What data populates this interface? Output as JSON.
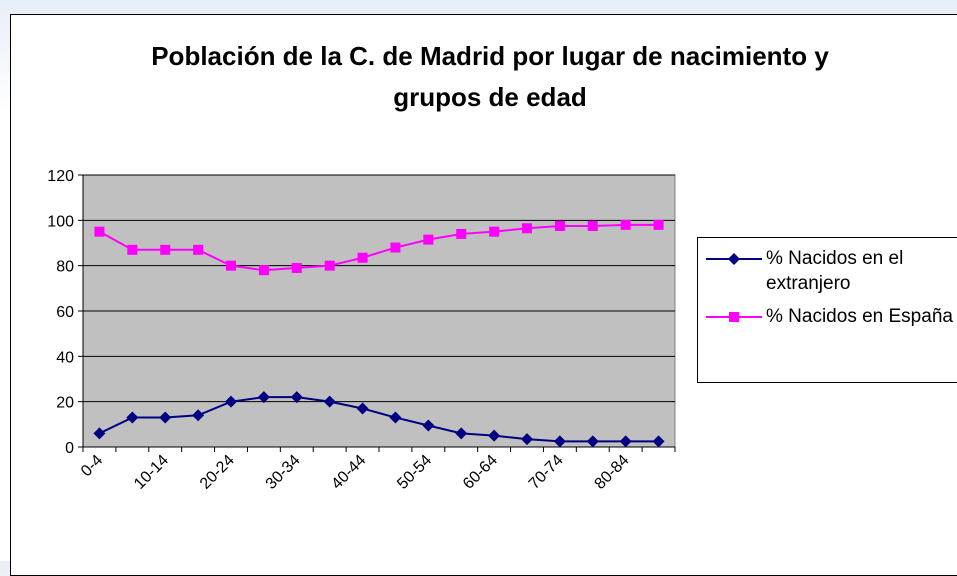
{
  "chart_data": {
    "type": "line",
    "title": "Población de la C. de Madrid por lugar de nacimiento y grupos de edad",
    "categories": [
      "0-4",
      null,
      "10-14",
      null,
      "20-24",
      null,
      "30-34",
      null,
      "40-44",
      null,
      "50-54",
      null,
      "60-64",
      null,
      "70-74",
      null,
      "80-84",
      null
    ],
    "series": [
      {
        "name": "% Nacidos en el extranjero",
        "color": "#000080",
        "marker": "diamond",
        "values": [
          6,
          13,
          13,
          14,
          20,
          22,
          22,
          20,
          17,
          13,
          9.5,
          6,
          5,
          3.5,
          2.5,
          2.5,
          2.5,
          2.5
        ]
      },
      {
        "name": "% Nacidos en España",
        "color": "#ff00ff",
        "marker": "square",
        "values": [
          95,
          87,
          87,
          87,
          80,
          78,
          79,
          80,
          83.5,
          88,
          91.5,
          94,
          95,
          96.5,
          97.5,
          97.5,
          98,
          98
        ]
      }
    ],
    "ylim": [
      0,
      120
    ],
    "yticks": [
      0,
      20,
      40,
      60,
      80,
      100,
      120
    ],
    "grid": true,
    "legend": "right"
  }
}
